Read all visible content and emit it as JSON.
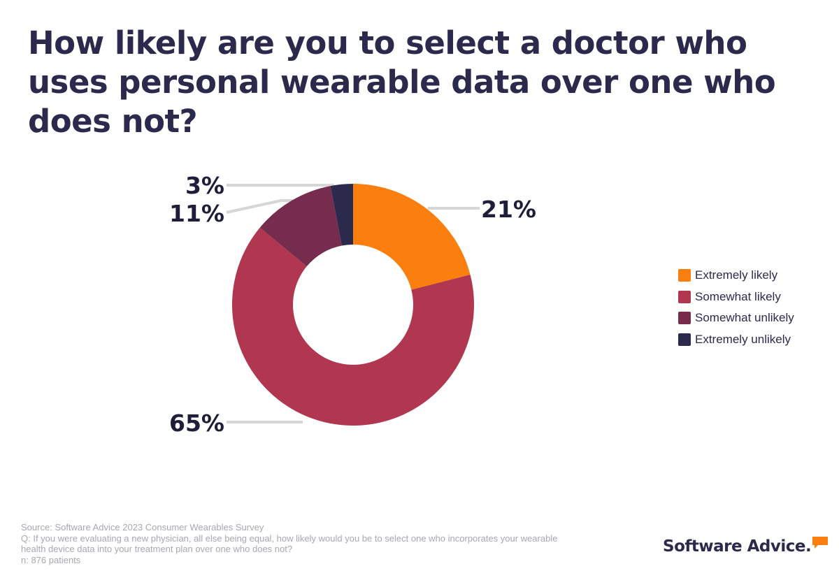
{
  "title": "How likely are you to select a doctor who uses personal wearable data over one who does not?",
  "chart_data": {
    "type": "pie",
    "style": "donut",
    "title": "How likely are you to select a doctor who uses personal wearable data over one who does not?",
    "categories": [
      "Extremely likely",
      "Somewhat likely",
      "Somewhat unlikely",
      "Extremely unlikely"
    ],
    "values": [
      21,
      65,
      11,
      3
    ],
    "data_labels": [
      "21%",
      "65%",
      "11%",
      "3%"
    ],
    "colors": [
      "#fb7f0f",
      "#b1364f",
      "#752c4d",
      "#2b2a4c"
    ],
    "legend_position": "right"
  },
  "footer": {
    "source": "Source: Software Advice 2023 Consumer Wearables Survey",
    "question_line1": "Q: If you were evaluating a new physician, all else being equal, how likely would you be to select one who incorporates your wearable",
    "question_line2": "health device data into your treatment plan over one who does not?",
    "sample": "n: 876 patients"
  },
  "logo": {
    "text": "Software Advice.",
    "accent_color": "#fb7f0f"
  }
}
